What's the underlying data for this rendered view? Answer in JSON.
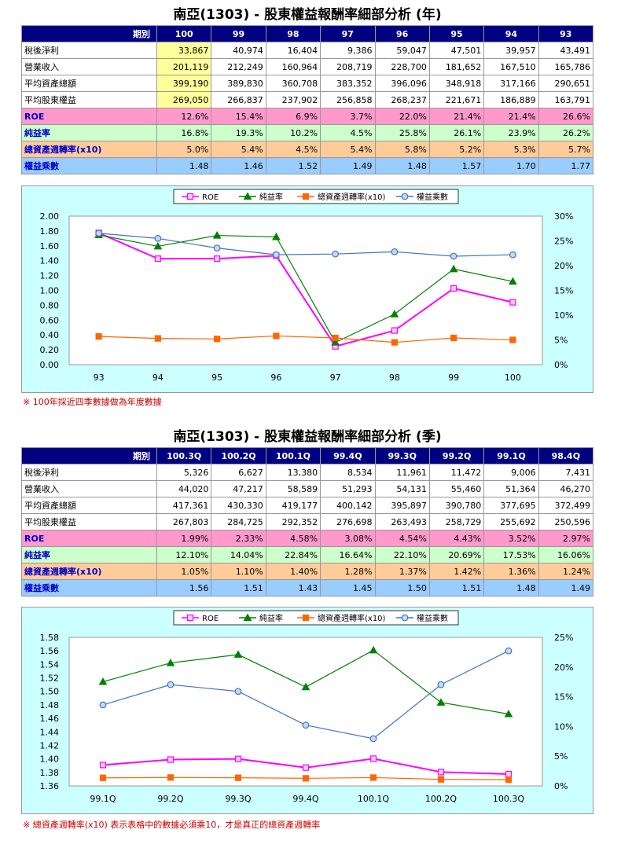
{
  "annual": {
    "title": "南亞(1303) - 股東權益報酬率細部分析 (年)",
    "header_label": "期別",
    "periods": [
      "100",
      "99",
      "98",
      "97",
      "96",
      "95",
      "94",
      "93"
    ],
    "rows": [
      {
        "label": "稅後淨利",
        "values": [
          "33,867",
          "40,974",
          "16,404",
          "9,386",
          "59,047",
          "47,501",
          "39,957",
          "43,491"
        ]
      },
      {
        "label": "營業收入",
        "values": [
          "201,119",
          "212,249",
          "160,964",
          "208,719",
          "228,700",
          "181,652",
          "167,510",
          "165,786"
        ]
      },
      {
        "label": "平均資產總額",
        "values": [
          "399,190",
          "389,830",
          "360,708",
          "383,352",
          "396,096",
          "348,918",
          "317,166",
          "290,651"
        ]
      },
      {
        "label": "平均股東權益",
        "values": [
          "269,050",
          "266,837",
          "237,902",
          "256,858",
          "268,237",
          "221,671",
          "186,889",
          "163,791"
        ]
      },
      {
        "label": "ROE",
        "values": [
          "12.6%",
          "15.4%",
          "6.9%",
          "3.7%",
          "22.0%",
          "21.4%",
          "21.4%",
          "26.6%"
        ]
      },
      {
        "label": "純益率",
        "values": [
          "16.8%",
          "19.3%",
          "10.2%",
          "4.5%",
          "25.8%",
          "26.1%",
          "23.9%",
          "26.2%"
        ]
      },
      {
        "label": "總資產週轉率(x10)",
        "values": [
          "5.0%",
          "5.4%",
          "4.5%",
          "5.4%",
          "5.8%",
          "5.2%",
          "5.3%",
          "5.7%"
        ]
      },
      {
        "label": "權益乘數",
        "values": [
          "1.48",
          "1.46",
          "1.52",
          "1.49",
          "1.48",
          "1.57",
          "1.70",
          "1.77"
        ]
      }
    ],
    "note": "※ 100年採近四季數據做為年度數據"
  },
  "quarterly": {
    "title": "南亞(1303) - 股東權益報酬率細部分析 (季)",
    "header_label": "期別",
    "periods": [
      "100.3Q",
      "100.2Q",
      "100.1Q",
      "99.4Q",
      "99.3Q",
      "99.2Q",
      "99.1Q",
      "98.4Q"
    ],
    "rows": [
      {
        "label": "稅後淨利",
        "values": [
          "5,326",
          "6,627",
          "13,380",
          "8,534",
          "11,961",
          "11,472",
          "9,006",
          "7,431"
        ]
      },
      {
        "label": "營業收入",
        "values": [
          "44,020",
          "47,217",
          "58,589",
          "51,293",
          "54,131",
          "55,460",
          "51,364",
          "46,270"
        ]
      },
      {
        "label": "平均資產總額",
        "values": [
          "417,361",
          "430,330",
          "419,177",
          "400,142",
          "395,897",
          "390,780",
          "377,695",
          "372,499"
        ]
      },
      {
        "label": "平均股東權益",
        "values": [
          "267,803",
          "284,725",
          "292,352",
          "276,698",
          "263,493",
          "258,729",
          "255,692",
          "250,596"
        ]
      },
      {
        "label": "ROE",
        "values": [
          "1.99%",
          "2.33%",
          "4.58%",
          "3.08%",
          "4.54%",
          "4.43%",
          "3.52%",
          "2.97%"
        ]
      },
      {
        "label": "純益率",
        "values": [
          "12.10%",
          "14.04%",
          "22.84%",
          "16.64%",
          "22.10%",
          "20.69%",
          "17.53%",
          "16.06%"
        ]
      },
      {
        "label": "總資產週轉率(x10)",
        "values": [
          "1.05%",
          "1.10%",
          "1.40%",
          "1.28%",
          "1.37%",
          "1.42%",
          "1.36%",
          "1.24%"
        ]
      },
      {
        "label": "權益乘數",
        "values": [
          "1.56",
          "1.51",
          "1.43",
          "1.45",
          "1.50",
          "1.51",
          "1.48",
          "1.49"
        ]
      }
    ],
    "note": "※ 總資產週轉率(x10) 表示表格中的數據必須乘10，才是真正的總資產週轉率"
  },
  "chart_data": [
    {
      "type": "line",
      "x": [
        "93",
        "94",
        "95",
        "96",
        "97",
        "98",
        "99",
        "100"
      ],
      "ylim_left": [
        0,
        2.0
      ],
      "yticks_left": [
        "2.00",
        "1.80",
        "1.60",
        "1.40",
        "1.20",
        "1.00",
        "0.80",
        "0.60",
        "0.40",
        "0.20",
        "0.00"
      ],
      "ylim_right": [
        0,
        30
      ],
      "yticks_right": [
        "30%",
        "25%",
        "20%",
        "15%",
        "10%",
        "5%",
        "0%"
      ],
      "legend_position": "top",
      "grid": false,
      "series": [
        {
          "name": "ROE",
          "axis": "right",
          "color": "#ff00ff",
          "marker": "square",
          "values": [
            26.6,
            21.4,
            21.4,
            22.0,
            3.7,
            6.9,
            15.4,
            12.6
          ]
        },
        {
          "name": "純益率",
          "axis": "right",
          "color": "#008000",
          "marker": "triangle",
          "values": [
            26.2,
            23.9,
            26.1,
            25.8,
            4.5,
            10.2,
            19.3,
            16.8
          ]
        },
        {
          "name": "總資產週轉率(x10)",
          "axis": "right",
          "color": "#ff6600",
          "marker": "square",
          "values": [
            5.7,
            5.3,
            5.2,
            5.8,
            5.4,
            4.5,
            5.4,
            5.0
          ]
        },
        {
          "name": "權益乘數",
          "axis": "left",
          "color": "#4472c4",
          "marker": "circle",
          "values": [
            1.77,
            1.7,
            1.57,
            1.48,
            1.49,
            1.52,
            1.46,
            1.48
          ]
        }
      ]
    },
    {
      "type": "line",
      "x": [
        "99.1Q",
        "99.2Q",
        "99.3Q",
        "99.4Q",
        "100.1Q",
        "100.2Q",
        "100.3Q"
      ],
      "ylim_left": [
        1.36,
        1.58
      ],
      "yticks_left": [
        "1.58",
        "1.56",
        "1.54",
        "1.52",
        "1.50",
        "1.48",
        "1.46",
        "1.44",
        "1.42",
        "1.40",
        "1.38",
        "1.36"
      ],
      "ylim_right": [
        0,
        25
      ],
      "yticks_right": [
        "25%",
        "20%",
        "15%",
        "10%",
        "5%",
        "0%"
      ],
      "legend_position": "top",
      "grid": false,
      "series": [
        {
          "name": "ROE",
          "axis": "right",
          "color": "#ff00ff",
          "marker": "square",
          "values": [
            3.52,
            4.43,
            4.54,
            3.08,
            4.58,
            2.33,
            1.99
          ]
        },
        {
          "name": "純益率",
          "axis": "right",
          "color": "#008000",
          "marker": "triangle",
          "values": [
            17.53,
            20.69,
            22.1,
            16.64,
            22.84,
            14.04,
            12.1
          ]
        },
        {
          "name": "總資產週轉率(x10)",
          "axis": "right",
          "color": "#ff6600",
          "marker": "square",
          "values": [
            1.36,
            1.42,
            1.37,
            1.28,
            1.4,
            1.1,
            1.05
          ]
        },
        {
          "name": "權益乘數",
          "axis": "left",
          "color": "#4472c4",
          "marker": "circle",
          "values": [
            1.48,
            1.51,
            1.5,
            1.45,
            1.43,
            1.51,
            1.56
          ]
        }
      ]
    }
  ]
}
